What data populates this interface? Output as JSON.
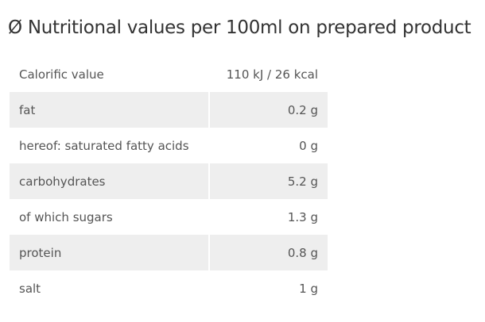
{
  "title": "Ø Nutritional values per 100ml on prepared product",
  "table": {
    "rows": [
      [
        "Calorific value",
        "110 kJ / 26 kcal"
      ],
      [
        "fat",
        "0.2 g"
      ],
      [
        "hereof: saturated fatty acids",
        "0 g"
      ],
      [
        "carbohydrates",
        "5.2 g"
      ],
      [
        "of which sugars",
        "1.3 g"
      ],
      [
        "protein",
        "0.8 g"
      ],
      [
        "salt",
        "1 g"
      ]
    ]
  }
}
